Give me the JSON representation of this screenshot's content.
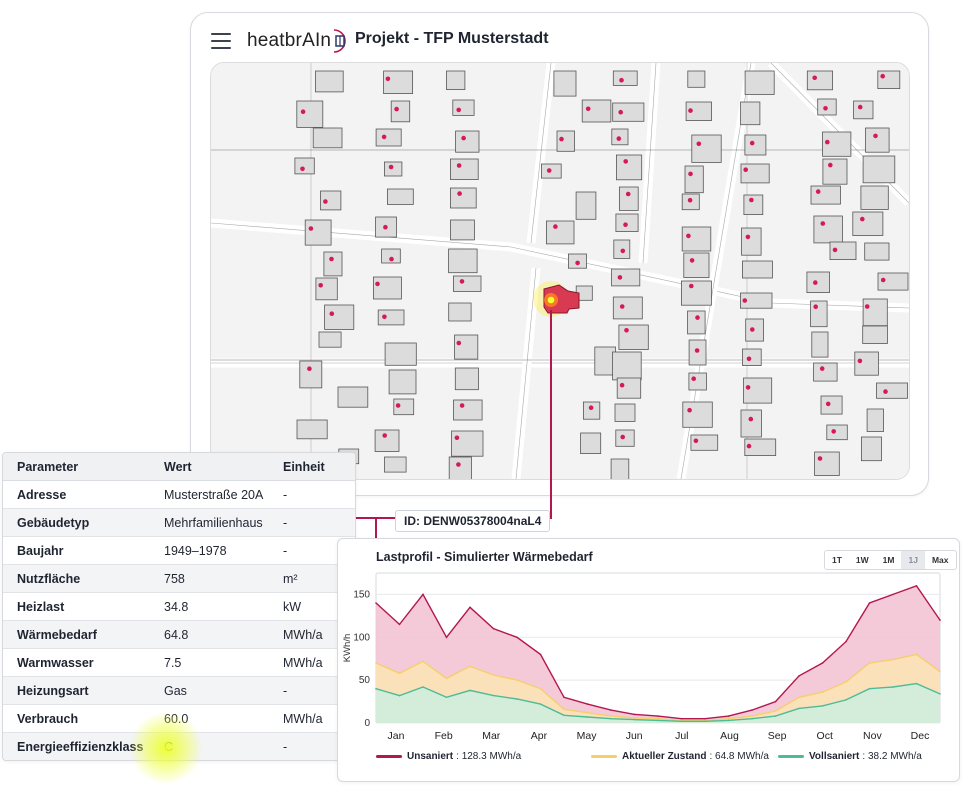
{
  "app": {
    "logo_text": "heatbrAIn",
    "project_title": "Projekt - TFP Musterstadt"
  },
  "map": {
    "building_id": "ID: DENW05378004naL4"
  },
  "parameter_table": {
    "headers": [
      "Parameter",
      "Wert",
      "Einheit"
    ],
    "rows": [
      [
        "Adresse",
        "Musterstraße 20A",
        "-"
      ],
      [
        "Gebäudetyp",
        "Mehrfamilienhaus",
        "-"
      ],
      [
        "Baujahr",
        "1949–1978",
        "-"
      ],
      [
        "Nutzfläche",
        "758",
        "m²"
      ],
      [
        "Heizlast",
        "34.8",
        "kW"
      ],
      [
        "Wärmebedarf",
        "64.8",
        "MWh/a"
      ],
      [
        "Warmwasser",
        "7.5",
        "MWh/a"
      ],
      [
        "Heizungsart",
        "Gas",
        "-"
      ],
      [
        "Verbrauch",
        "60.0",
        "MWh/a"
      ],
      [
        "Energieeffizienzklass",
        "C",
        "-"
      ]
    ]
  },
  "chart": {
    "range_buttons": [
      "1T",
      "1W",
      "1M",
      "1J",
      "Max"
    ],
    "active_range": "1J"
  },
  "colors": {
    "accent": "#b4174f",
    "unsaniert": "#b4174f",
    "aktuell": "#f5cf6b",
    "vollsaniert": "#4dbb96"
  },
  "chart_data": {
    "type": "area",
    "title": "Lastprofil - Simulierter Wärmebedarf",
    "xlabel": "",
    "ylabel": "KWh/h",
    "ylim": [
      0,
      175
    ],
    "yticks": [
      0,
      50,
      100,
      150
    ],
    "x_tick_labels": [
      "Jan",
      "Feb",
      "Mar",
      "Apr",
      "May",
      "Jun",
      "Jul",
      "Aug",
      "Sep",
      "Oct",
      "Nov",
      "Dec"
    ],
    "grid": true,
    "legend_position": "bottom",
    "x": [
      "Jan 1",
      "Jan 15",
      "Feb 1",
      "Feb 15",
      "Mar 1",
      "Mar 15",
      "Apr 1",
      "Apr 15",
      "May 1",
      "May 15",
      "Jun 1",
      "Jun 15",
      "Jul 1",
      "Jul 15",
      "Aug 1",
      "Aug 15",
      "Sep 1",
      "Sep 15",
      "Oct 1",
      "Oct 15",
      "Nov 1",
      "Nov 15",
      "Dec 1",
      "Dec 15",
      "Dec 31"
    ],
    "series": [
      {
        "name": "Unsaniert",
        "label": "128.3 MWh/a",
        "color": "#b4174f",
        "values": [
          140,
          115,
          150,
          100,
          135,
          110,
          100,
          80,
          30,
          22,
          15,
          10,
          8,
          5,
          5,
          8,
          15,
          25,
          55,
          70,
          95,
          140,
          150,
          160,
          120
        ]
      },
      {
        "name": "Aktueller Zustand",
        "label": "64.8 MWh/a",
        "color": "#f5cf6b",
        "values": [
          70,
          58,
          72,
          52,
          66,
          56,
          50,
          40,
          16,
          12,
          8,
          6,
          5,
          3,
          3,
          5,
          8,
          14,
          30,
          36,
          48,
          70,
          74,
          80,
          60
        ]
      },
      {
        "name": "Vollsaniert",
        "label": "38.2 MWh/a",
        "color": "#4dbb96",
        "values": [
          40,
          32,
          42,
          30,
          38,
          32,
          28,
          22,
          9,
          7,
          5,
          4,
          3,
          2,
          2,
          3,
          5,
          8,
          17,
          20,
          27,
          40,
          42,
          46,
          34
        ]
      }
    ]
  }
}
